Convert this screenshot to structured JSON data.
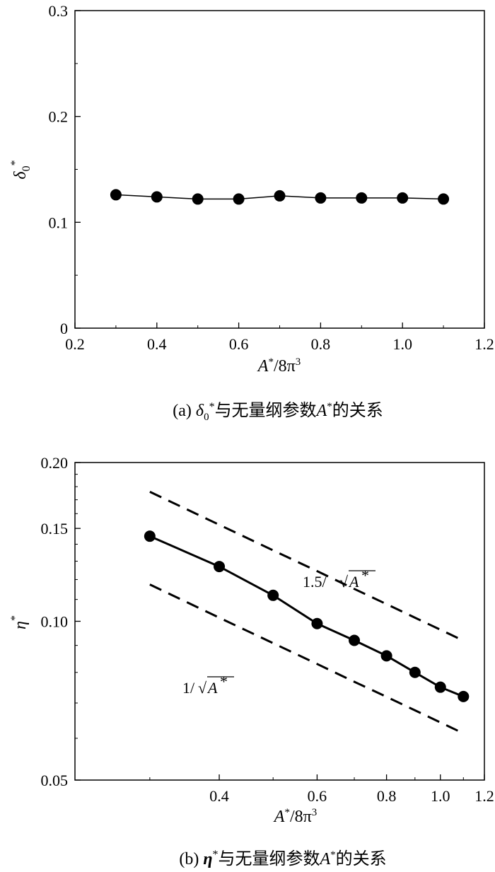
{
  "chart_data": [
    {
      "type": "line",
      "x": [
        0.3,
        0.4,
        0.5,
        0.6,
        0.7,
        0.8,
        0.9,
        1.0,
        1.1
      ],
      "series": [
        {
          "values": [
            0.126,
            0.124,
            0.122,
            0.122,
            0.125,
            0.123,
            0.123,
            0.123,
            0.122
          ]
        }
      ],
      "xlim": [
        0.2,
        1.2
      ],
      "ylim": [
        0,
        0.3
      ],
      "x_ticks": [
        "0.2",
        "0.4",
        "0.6",
        "0.8",
        "1.0",
        "1.2"
      ],
      "y_ticks": [
        "0",
        "0.1",
        "0.2",
        "0.3"
      ],
      "ylabel_main": "δ",
      "ylabel_sub": "0",
      "ylabel_sup": "*",
      "xlabel_main": "A",
      "xlabel_sup": "*",
      "xlabel_rest": "/8π",
      "xlabel_sup2": "3",
      "caption_prefix": "(a) ",
      "caption_symbol": "δ",
      "caption_sub": "0",
      "caption_sup": "*",
      "caption_text": "与无量纲参数",
      "caption_var": "A",
      "caption_var_sup": "*",
      "caption_suffix": "的关系",
      "grid": false,
      "legend": "none"
    },
    {
      "type": "line",
      "x_scale": "log",
      "y_scale": "log",
      "x": [
        0.3,
        0.4,
        0.5,
        0.6,
        0.7,
        0.8,
        0.9,
        1.0,
        1.1
      ],
      "series": [
        {
          "values": [
            0.145,
            0.127,
            0.112,
            0.099,
            0.092,
            0.086,
            0.08,
            0.075,
            0.072
          ]
        },
        {
          "label_prefix": "1.5/",
          "label_var": "A",
          "label_sup": "*",
          "style": "dashed",
          "values": [
            0.176,
            0.1524,
            0.1363,
            0.1245,
            0.1152,
            0.1078,
            0.1016,
            0.0964,
            0.0919
          ]
        },
        {
          "label_prefix": "1/",
          "label_var": "A",
          "label_sup": "*",
          "style": "dashed",
          "values": [
            0.1174,
            0.1016,
            0.0909,
            0.083,
            0.0768,
            0.0719,
            0.0678,
            0.0643,
            0.0613
          ]
        }
      ],
      "xlim": [
        0.22,
        1.2
      ],
      "ylim": [
        0.05,
        0.2
      ],
      "x_ticks": [
        "0.4",
        "0.6",
        "0.8",
        "1.0",
        "1.2"
      ],
      "y_ticks": [
        "0.05",
        "0.10",
        "0.15",
        "0.20"
      ],
      "ylabel_main": "η",
      "ylabel_sup": "*",
      "xlabel_main": "A",
      "xlabel_sup": "*",
      "xlabel_rest": "/8π",
      "xlabel_sup2": "3",
      "caption_prefix": "(b) ",
      "caption_symbol": "η",
      "caption_sup": "*",
      "caption_text": "与无量纲参数",
      "caption_var": "A",
      "caption_var_sup": "*",
      "caption_suffix": "的关系",
      "grid": false,
      "legend": "none"
    }
  ]
}
